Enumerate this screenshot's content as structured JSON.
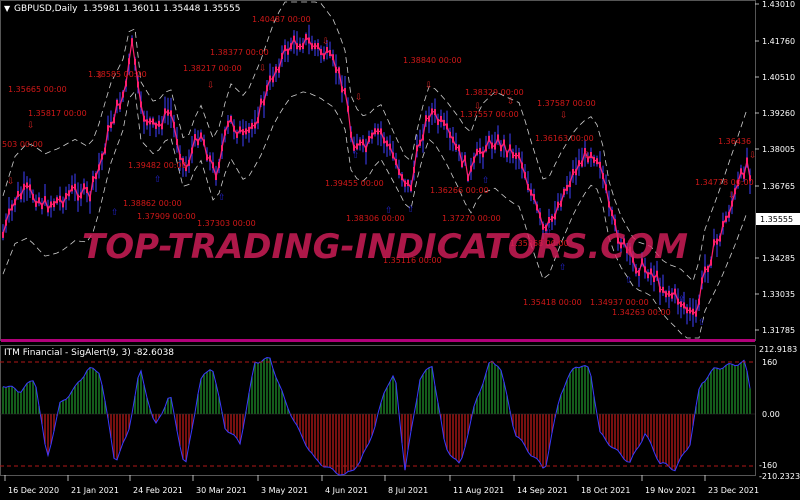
{
  "main_header": {
    "symbol": "GBPUSD,Daily",
    "ohlc": "1.35981 1.36011 1.35448 1.35555"
  },
  "sub_header": {
    "indicator": "ITM Financial - SigAlert(9, 3) -82.6038"
  },
  "watermark": "TOP-TRADING-INDICATORS.COM",
  "current_price": "1.35555",
  "price_axis_labels": [
    "1.43010",
    "1.41760",
    "1.40510",
    "1.39260",
    "1.38005",
    "1.36765",
    "1.34285",
    "1.33035",
    "1.31785"
  ],
  "sub_axis_labels": [
    "212.9183",
    "160",
    "0.00",
    "-160",
    "-210.2323"
  ],
  "date_labels": [
    "16 Dec 2020",
    "21 Jan 2021",
    "24 Feb 2021",
    "30 Mar 2021",
    "3 May 2021",
    "4 Jun 2021",
    "8 Jul 2021",
    "11 Aug 2021",
    "14 Sep 2021",
    "18 Oct 2021",
    "19 Nov 2021",
    "23 Dec 2021"
  ],
  "level_labels": [
    "1.40487 00:00",
    "1.38377 00:00",
    "1.38585 00:00",
    "1.38217 00:00",
    "1.35665 00:00",
    "1.35817 00:00",
    "503 00:00",
    "1.39482 00:00",
    "1.38862 00:00",
    "1.37909 00:00",
    "1.37303 00:00",
    "1.38840 00:00",
    "1.38329 00:00",
    "1.37587 00:00",
    "1.37557 00:00",
    "1.36163 00:00",
    "1.36436",
    "1.34778 00:00",
    "1.39455 00:00",
    "1.38306 00:00",
    "1.37270 00:00",
    "1.36266 00:00",
    "1.35418 00:00",
    "1.34937 00:00",
    "1.34263 00:00",
    "1.35116 00:00",
    "1.35868 00:00"
  ],
  "colors": {
    "background": "#000000",
    "candles": "#ff1f6e",
    "wicks": "#3f3fff",
    "bands": "#cfcfcf",
    "level_text": "#d01818",
    "arrow_up": "#2222cc",
    "arrow_down": "#cc2222",
    "hist_positive": "#1f8f2a",
    "hist_negative": "#b81818",
    "sig_line": "#3a3aff",
    "threshold": "#b01818"
  },
  "chart_data": [
    {
      "type": "line",
      "title": "GBPUSD,Daily",
      "x": [
        "16 Dec 2020",
        "21 Jan 2021",
        "24 Feb 2021",
        "30 Mar 2021",
        "3 May 2021",
        "4 Jun 2021",
        "8 Jul 2021",
        "11 Aug 2021",
        "14 Sep 2021",
        "18 Oct 2021",
        "19 Nov 2021",
        "23 Dec 2021"
      ],
      "ylim": [
        1.312,
        1.4301
      ],
      "series": [
        {
          "name": "",
          "values": [
            1.345,
            1.36,
            1.392,
            1.376,
            1.39,
            1.415,
            1.38,
            1.39,
            1.37,
            1.376,
            1.336,
            1.356
          ]
        }
      ]
    },
    {
      "type": "bar",
      "title": "ITM Financial - SigAlert(9, 3) -82.6038",
      "x": [
        "16 Dec 2020",
        "21 Jan 2021",
        "24 Feb 2021",
        "30 Mar 2021",
        "3 May 2021",
        "4 Jun 2021",
        "8 Jul 2021",
        "11 Aug 2021",
        "14 Sep 2021",
        "18 Oct 2021",
        "19 Nov 2021",
        "23 Dec 2021"
      ],
      "ylim": [
        -210.2323,
        212.9183
      ],
      "levels": [
        160,
        0,
        -160
      ],
      "series": [
        {
          "name": "",
          "values": [
            90,
            60,
            120,
            -150,
            80,
            170,
            -190,
            120,
            -160,
            150,
            -170,
            150
          ]
        }
      ]
    }
  ]
}
